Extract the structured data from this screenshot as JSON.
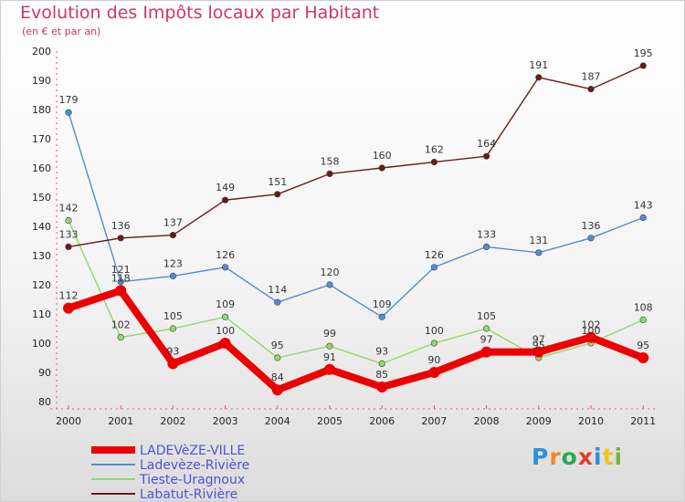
{
  "header": {
    "title": "Evolution des Impôts locaux par Habitant",
    "subtitle": "(en € et par an)"
  },
  "logo": {
    "letters": [
      "P",
      "r",
      "o",
      "x",
      "i",
      "t",
      "i"
    ],
    "colors": [
      "#2f8fd8",
      "#f08a1c",
      "#2fa84f",
      "#e33b2e",
      "#2f8fd8",
      "#f2c41a",
      "#7bb53a"
    ]
  },
  "chart_data": {
    "type": "line",
    "x": [
      "2000",
      "2001",
      "2002",
      "2003",
      "2004",
      "2005",
      "2006",
      "2007",
      "2008",
      "2009",
      "2010",
      "2011"
    ],
    "ylim": [
      80,
      200
    ],
    "yticks": [
      80,
      90,
      100,
      110,
      120,
      130,
      140,
      150,
      160,
      170,
      180,
      190,
      200
    ],
    "grid": false,
    "legend_position": "bottom-left",
    "series": [
      {
        "name": "LADEVèZE-VILLE",
        "color": "#ee0000",
        "width": "thick",
        "values": [
          112,
          118,
          93,
          100,
          84,
          91,
          85,
          90,
          97,
          97,
          102,
          95
        ]
      },
      {
        "name": "Ladevèze-Rivière",
        "color": "#4f8fd0",
        "width": "thin",
        "values": [
          179,
          121,
          123,
          126,
          114,
          120,
          109,
          126,
          133,
          131,
          136,
          143
        ]
      },
      {
        "name": "Tieste-Uragnoux",
        "color": "#90d86a",
        "width": "thin",
        "values": [
          142,
          102,
          105,
          109,
          95,
          99,
          93,
          100,
          105,
          95,
          100,
          108
        ]
      },
      {
        "name": "Labatut-Rivière",
        "color": "#6b1a1a",
        "width": "thin",
        "values": [
          133,
          136,
          137,
          149,
          151,
          158,
          160,
          162,
          164,
          191,
          187,
          195
        ]
      }
    ]
  }
}
